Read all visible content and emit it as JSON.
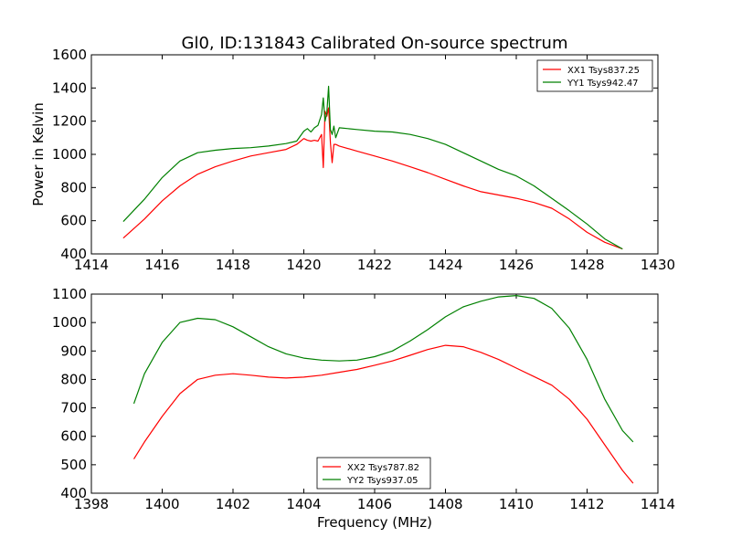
{
  "title": "Gl0, ID:131843 Calibrated On-source spectrum",
  "colors": {
    "red": "#ff0000",
    "green": "#008000"
  },
  "chart_data": [
    {
      "type": "line",
      "xlabel": "",
      "ylabel": "Power in Kelvin",
      "xlim": [
        1414,
        1430
      ],
      "ylim": [
        400,
        1600
      ],
      "xticks": [
        "1414",
        "1416",
        "1418",
        "1420",
        "1422",
        "1424",
        "1426",
        "1428",
        "1430"
      ],
      "yticks": [
        "400",
        "600",
        "800",
        "1000",
        "1200",
        "1400",
        "1600"
      ],
      "legend_position": "top-right",
      "series": [
        {
          "name": "XX1 Tsys837.25",
          "color": "#ff0000",
          "x": [
            1414.9,
            1415.5,
            1416.0,
            1416.5,
            1417.0,
            1417.5,
            1418.0,
            1418.5,
            1419.0,
            1419.5,
            1419.8,
            1420.0,
            1420.1,
            1420.2,
            1420.3,
            1420.4,
            1420.5,
            1420.55,
            1420.6,
            1420.65,
            1420.7,
            1420.75,
            1420.8,
            1420.85,
            1420.9,
            1421.0,
            1421.5,
            1422.0,
            1422.5,
            1423.0,
            1423.5,
            1424.0,
            1424.5,
            1425.0,
            1425.5,
            1426.0,
            1426.5,
            1427.0,
            1427.5,
            1428.0,
            1428.5,
            1429.0
          ],
          "y": [
            495,
            610,
            720,
            810,
            880,
            925,
            960,
            990,
            1010,
            1030,
            1060,
            1095,
            1085,
            1080,
            1085,
            1080,
            1120,
            920,
            1260,
            1230,
            1280,
            1070,
            950,
            1060,
            1060,
            1050,
            1020,
            990,
            960,
            925,
            890,
            850,
            810,
            775,
            755,
            735,
            710,
            675,
            610,
            530,
            470,
            430
          ]
        },
        {
          "name": "YY1 Tsys942.47",
          "color": "#008000",
          "x": [
            1414.9,
            1415.5,
            1416.0,
            1416.5,
            1417.0,
            1417.5,
            1418.0,
            1418.5,
            1419.0,
            1419.5,
            1419.8,
            1420.0,
            1420.1,
            1420.2,
            1420.3,
            1420.4,
            1420.5,
            1420.55,
            1420.6,
            1420.65,
            1420.7,
            1420.75,
            1420.8,
            1420.85,
            1420.9,
            1421.0,
            1421.5,
            1422.0,
            1422.5,
            1423.0,
            1423.5,
            1424.0,
            1424.5,
            1425.0,
            1425.5,
            1426.0,
            1426.5,
            1427.0,
            1427.5,
            1428.0,
            1428.5,
            1429.0
          ],
          "y": [
            595,
            730,
            860,
            960,
            1010,
            1025,
            1035,
            1040,
            1050,
            1065,
            1080,
            1140,
            1155,
            1135,
            1160,
            1175,
            1240,
            1340,
            1200,
            1250,
            1410,
            1150,
            1120,
            1170,
            1100,
            1160,
            1150,
            1140,
            1135,
            1120,
            1095,
            1060,
            1010,
            960,
            910,
            870,
            810,
            735,
            660,
            580,
            490,
            430
          ]
        }
      ]
    },
    {
      "type": "line",
      "xlabel": "Frequency (MHz)",
      "ylabel": "",
      "xlim": [
        1398,
        1414
      ],
      "ylim": [
        400,
        1100
      ],
      "xticks": [
        "1398",
        "1400",
        "1402",
        "1404",
        "1406",
        "1408",
        "1410",
        "1412",
        "1414"
      ],
      "yticks": [
        "400",
        "500",
        "600",
        "700",
        "800",
        "900",
        "1000",
        "1100"
      ],
      "legend_position": "bottom-center",
      "series": [
        {
          "name": "XX2 Tsys787.82",
          "color": "#ff0000",
          "x": [
            1399.2,
            1399.5,
            1400.0,
            1400.5,
            1401.0,
            1401.5,
            1402.0,
            1402.5,
            1403.0,
            1403.5,
            1404.0,
            1404.5,
            1405.0,
            1405.5,
            1406.0,
            1406.5,
            1407.0,
            1407.5,
            1408.0,
            1408.5,
            1409.0,
            1409.5,
            1410.0,
            1410.5,
            1411.0,
            1411.5,
            1412.0,
            1412.5,
            1413.0,
            1413.3
          ],
          "y": [
            520,
            580,
            670,
            750,
            800,
            815,
            820,
            815,
            808,
            805,
            808,
            815,
            825,
            835,
            850,
            865,
            885,
            905,
            920,
            915,
            895,
            870,
            840,
            810,
            780,
            730,
            660,
            570,
            480,
            435
          ]
        },
        {
          "name": "YY2 Tsys937.05",
          "color": "#008000",
          "x": [
            1399.2,
            1399.5,
            1400.0,
            1400.5,
            1401.0,
            1401.5,
            1402.0,
            1402.5,
            1403.0,
            1403.5,
            1404.0,
            1404.5,
            1405.0,
            1405.5,
            1406.0,
            1406.5,
            1407.0,
            1407.5,
            1408.0,
            1408.5,
            1409.0,
            1409.5,
            1410.0,
            1410.5,
            1411.0,
            1411.5,
            1412.0,
            1412.5,
            1413.0,
            1413.3
          ],
          "y": [
            715,
            820,
            930,
            1000,
            1015,
            1010,
            985,
            950,
            915,
            890,
            875,
            868,
            865,
            868,
            880,
            900,
            935,
            975,
            1020,
            1055,
            1075,
            1090,
            1095,
            1085,
            1050,
            980,
            870,
            730,
            620,
            580
          ]
        }
      ]
    }
  ]
}
